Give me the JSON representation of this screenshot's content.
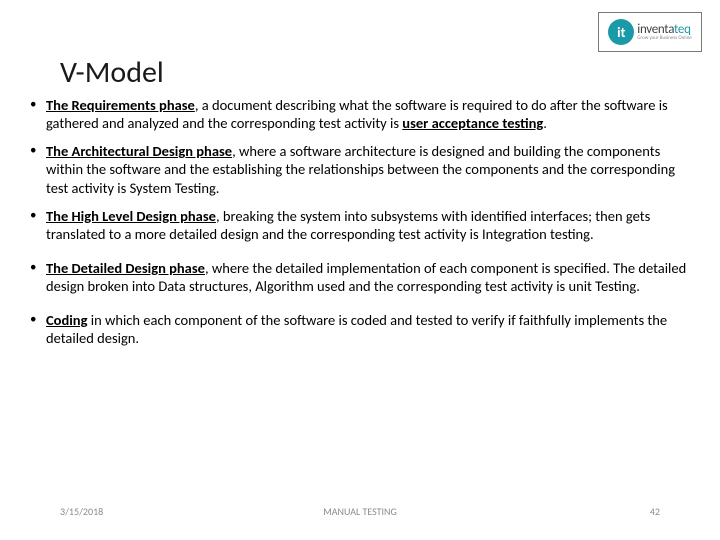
{
  "logo": {
    "icon_letter": "it",
    "name_part1": "inventa",
    "name_part2": "teq",
    "tagline": "Grow your Business Online",
    "border_color": "#7a7a7a",
    "circle_color": "#1a9aa8"
  },
  "title": "V-Model",
  "bullets": [
    {
      "bold": "The Requirements phase",
      "rest": ", a document describing what the software is required to do after the software is gathered and analyzed and the corresponding test activity is ",
      "tail_bold": "user acceptance testing",
      "tail": "."
    },
    {
      "bold": "The Architectural Design phase",
      "rest": ", where a software architecture is designed and building the components within the software and the establishing the relationships between the components and the corresponding test activity is System Testing.",
      "tail_bold": "",
      "tail": ""
    },
    {
      "bold": "The High Level Design phase",
      "rest": ", breaking the system into subsystems with identified interfaces; then gets translated to a more detailed design and the corresponding test activity is Integration testing.",
      "tail_bold": "",
      "tail": ""
    },
    {
      "bold": "The Detailed Design phase",
      "rest": ", where the detailed implementation of each component is specified. The detailed design broken into Data structures, Algorithm used and the corresponding test activity is unit Testing.",
      "tail_bold": "",
      "tail": ""
    },
    {
      "bold": "Coding",
      "rest": " in which each component of the software is coded and tested to verify if faithfully implements the detailed design.",
      "tail_bold": "",
      "tail": ""
    }
  ],
  "footer": {
    "date": "3/15/2018",
    "center": "MANUAL TESTING",
    "page": "42"
  },
  "colors": {
    "background": "#ffffff",
    "text": "#000000",
    "footer": "#8a8a8a",
    "title": "#1a1a1a"
  },
  "typography": {
    "title_fontsize": 30,
    "body_fontsize": 14.5,
    "footer_fontsize": 10,
    "font_family": "Calibri"
  }
}
